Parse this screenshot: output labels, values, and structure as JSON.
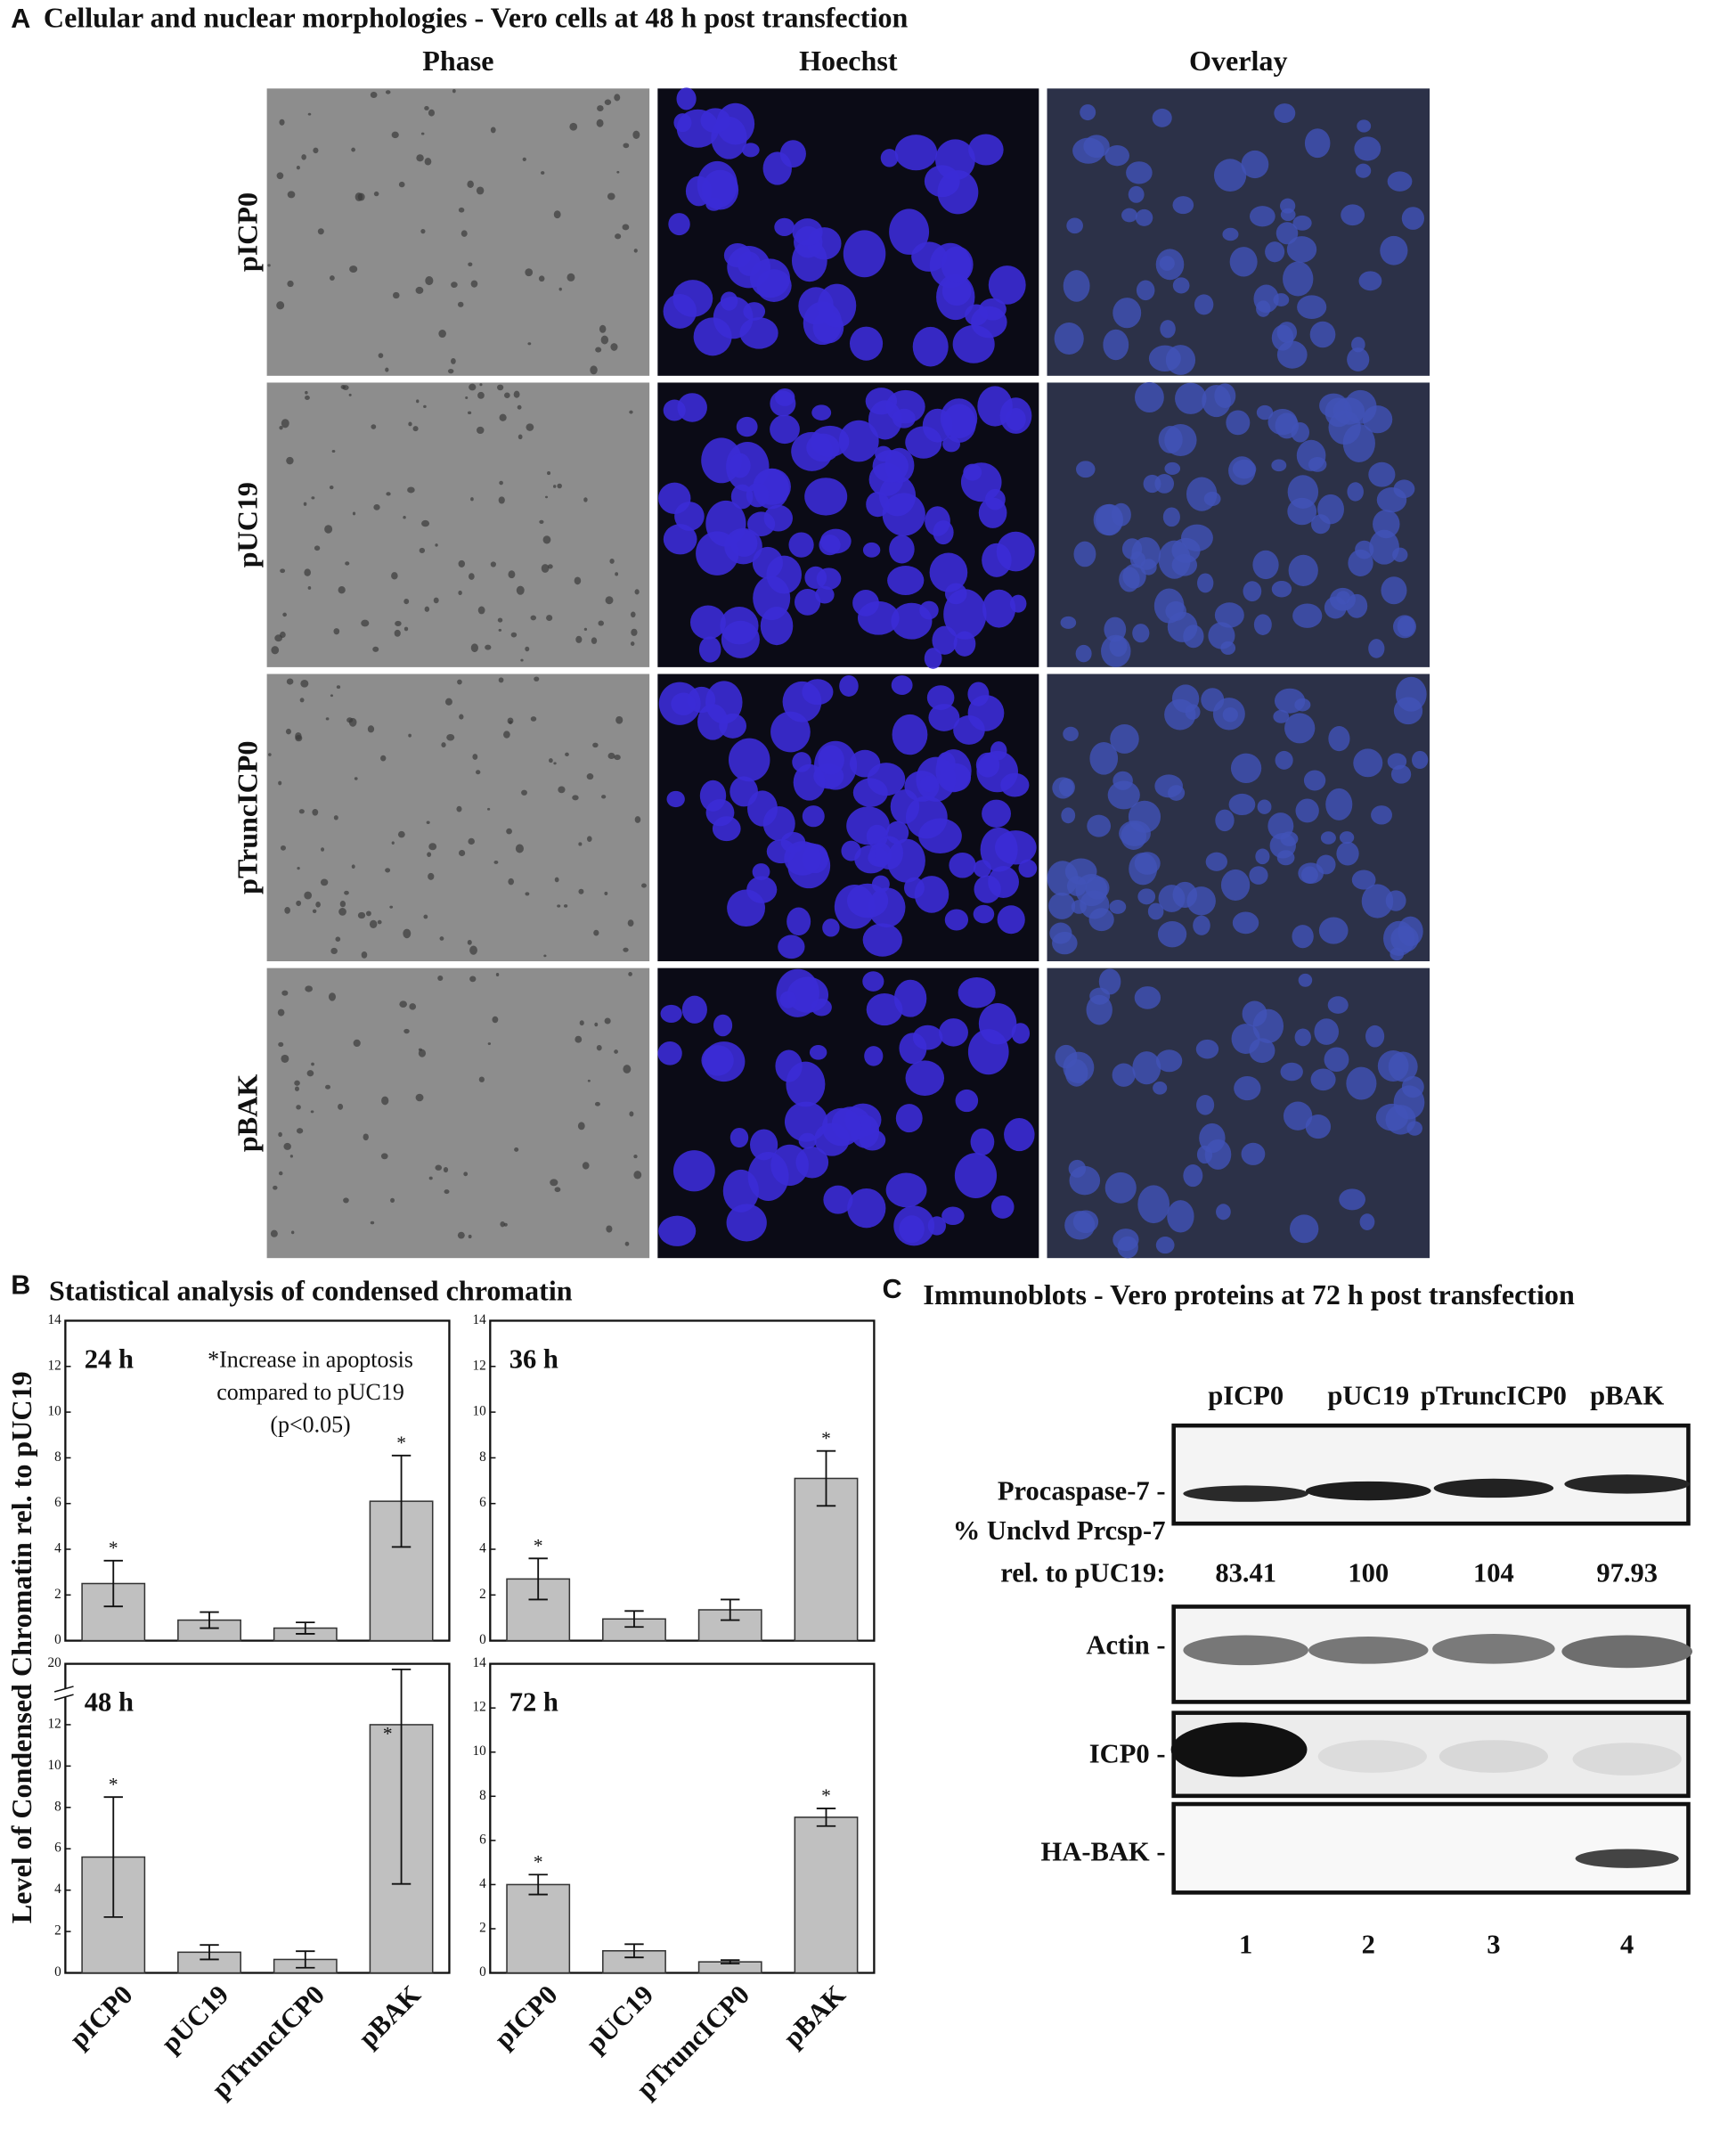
{
  "panel_a": {
    "letter": "A",
    "title": "Cellular and nuclear morphologies - Vero cells at 48 h post transfection",
    "columns": [
      "Phase",
      "Hoechst",
      "Overlay"
    ],
    "rows": [
      "pICP0",
      "pUC19",
      "pTruncICP0",
      "pBAK"
    ]
  },
  "panel_b": {
    "letter": "B",
    "title": "Statistical analysis of condensed chromatin",
    "ylabel": "Level of Condensed Chromatin rel. to pUC19",
    "categories": [
      "pICP0",
      "pUC19",
      "pTruncICP0",
      "pBAK"
    ]
  },
  "chart_data": [
    {
      "type": "bar",
      "title": "24 h",
      "annotation": [
        "*Increase in apoptosis",
        "compared to pUC19",
        "(p<0.05)"
      ],
      "values": [
        2.5,
        0.9,
        0.55,
        6.1
      ],
      "errors": [
        1.0,
        0.35,
        0.25,
        2.0
      ],
      "significance": [
        "*",
        null,
        null,
        "*"
      ],
      "ylim": [
        0,
        14
      ],
      "yticks": [
        0,
        2,
        4,
        6,
        8,
        10,
        12,
        14
      ],
      "color": "#c0c0c0"
    },
    {
      "type": "bar",
      "title": "36 h",
      "values": [
        2.7,
        0.95,
        1.35,
        7.1
      ],
      "errors": [
        0.9,
        0.35,
        0.45,
        1.2
      ],
      "significance": [
        "*",
        null,
        null,
        "*"
      ],
      "ylim": [
        0,
        14
      ],
      "yticks": [
        0,
        2,
        4,
        6,
        8,
        10,
        12,
        14
      ],
      "color": "#c0c0c0"
    },
    {
      "type": "bar",
      "title": "48 h",
      "values": [
        5.6,
        1.0,
        0.65,
        12.0
      ],
      "errors": [
        2.9,
        0.35,
        0.4,
        7.7
      ],
      "significance": [
        "*",
        null,
        null,
        "*"
      ],
      "ylim": [
        0,
        20
      ],
      "ybreak": [
        13,
        19
      ],
      "yticks": [
        0,
        2,
        4,
        6,
        8,
        10,
        12,
        20
      ],
      "color": "#c0c0c0"
    },
    {
      "type": "bar",
      "title": "72 h",
      "values": [
        4.0,
        1.0,
        0.5,
        7.05
      ],
      "errors": [
        0.45,
        0.3,
        0.08,
        0.4
      ],
      "significance": [
        "*",
        null,
        null,
        "*"
      ],
      "ylim": [
        0,
        14
      ],
      "yticks": [
        0,
        2,
        4,
        6,
        8,
        10,
        12,
        14
      ],
      "color": "#c0c0c0"
    }
  ],
  "panel_c": {
    "letter": "C",
    "title": "Immunoblots - Vero proteins at 72 h post transfection",
    "lanes": [
      "pICP0",
      "pUC19",
      "pTruncICP0",
      "pBAK"
    ],
    "bands": [
      "Procaspase-7 -",
      "Actin -",
      "ICP0 -",
      "HA-BAK -"
    ],
    "quant_label": [
      "% Unclvd Prcsp-7",
      "rel. to pUC19:"
    ],
    "quant_values": [
      83.41,
      100,
      104,
      97.93
    ],
    "lane_numbers": [
      1,
      2,
      3,
      4
    ]
  }
}
